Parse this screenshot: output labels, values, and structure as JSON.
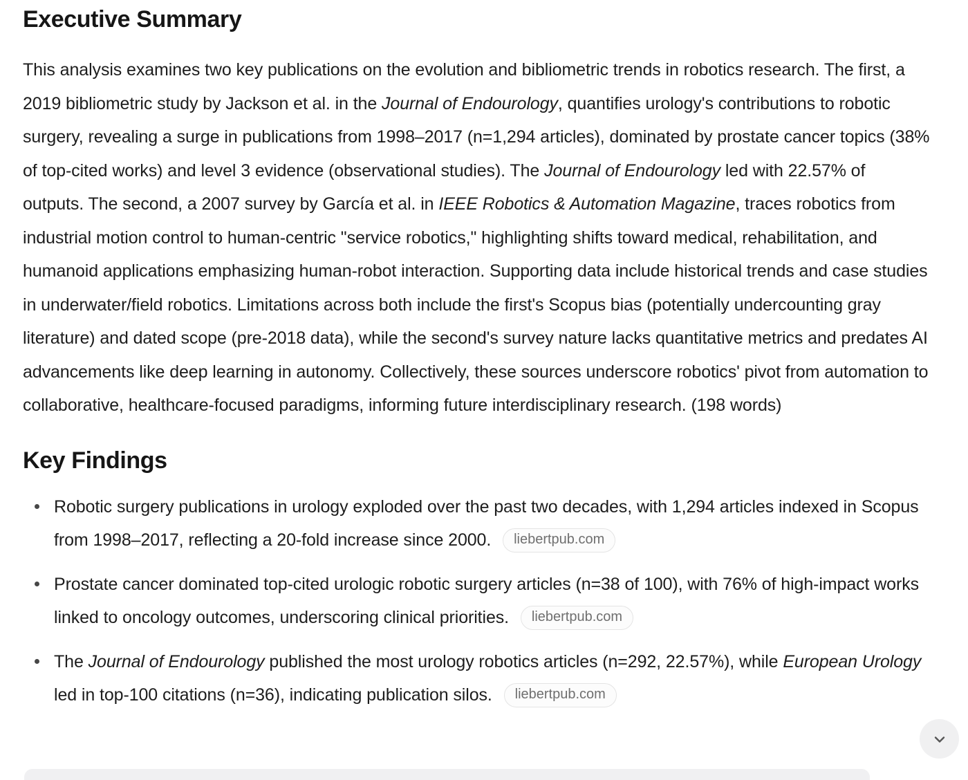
{
  "colors": {
    "heading_color": "#161616",
    "body_color": "#1d1d1d",
    "pill_border": "#e4e4e4",
    "pill_bg": "#fcfcfc",
    "pill_text": "#6f6f6f",
    "button_bg": "#f0f0f1",
    "chevron_color": "#565656",
    "card_edge": "#f0f0f2"
  },
  "executive_summary": {
    "heading": "Executive Summary",
    "paragraph_segments": [
      {
        "text": "This analysis examines two key publications on the evolution and bibliometric trends in robotics research. The first, a 2019 bibliometric study by Jackson et al. in the "
      },
      {
        "text": "Journal of Endourology",
        "italic": true
      },
      {
        "text": ", quantifies urology's contributions to robotic surgery, revealing a surge in publications from 1998–2017 (n=1,294 articles), dominated by prostate cancer topics (38% of top-cited works) and level 3 evidence (observational studies). The "
      },
      {
        "text": "Journal of Endourology",
        "italic": true
      },
      {
        "text": " led with 22.57% of outputs. The second, a 2007 survey by García et al. in "
      },
      {
        "text": "IEEE Robotics & Automation Magazine",
        "italic": true
      },
      {
        "text": ", traces robotics from industrial motion control to human-centric \"service robotics,\" highlighting shifts toward medical, rehabilitation, and humanoid applications emphasizing human-robot interaction. Supporting data include historical trends and case studies in underwater/field robotics. Limitations across both include the first's Scopus bias (potentially undercounting gray literature) and dated scope (pre-2018 data), while the second's survey nature lacks quantitative metrics and predates AI advancements like deep learning in autonomy. Collectively, these sources underscore robotics' pivot from automation to collaborative, healthcare-focused paradigms, informing future interdisciplinary research. (198 words)"
      }
    ]
  },
  "key_findings": {
    "heading": "Key Findings",
    "items": [
      {
        "segments": [
          {
            "text": "Robotic surgery publications in urology exploded over the past two decades, with 1,294 articles indexed in Scopus from 1998–2017, reflecting a 20-fold increase since 2000."
          }
        ],
        "citation": "liebertpub.com"
      },
      {
        "segments": [
          {
            "text": "Prostate cancer dominated top-cited urologic robotic surgery articles (n=38 of 100), with 76% of high-impact works linked to oncology outcomes, underscoring clinical priorities."
          }
        ],
        "citation": "liebertpub.com"
      },
      {
        "segments": [
          {
            "text": "The "
          },
          {
            "text": "Journal of Endourology",
            "italic": true
          },
          {
            "text": " published the most urology robotics articles (n=292, 22.57%), while "
          },
          {
            "text": "European Urology",
            "italic": true
          },
          {
            "text": " led in top-100 citations (n=36), indicating publication silos."
          }
        ],
        "citation": "liebertpub.com"
      }
    ]
  },
  "scroll_button": {
    "icon": "chevron-down"
  }
}
